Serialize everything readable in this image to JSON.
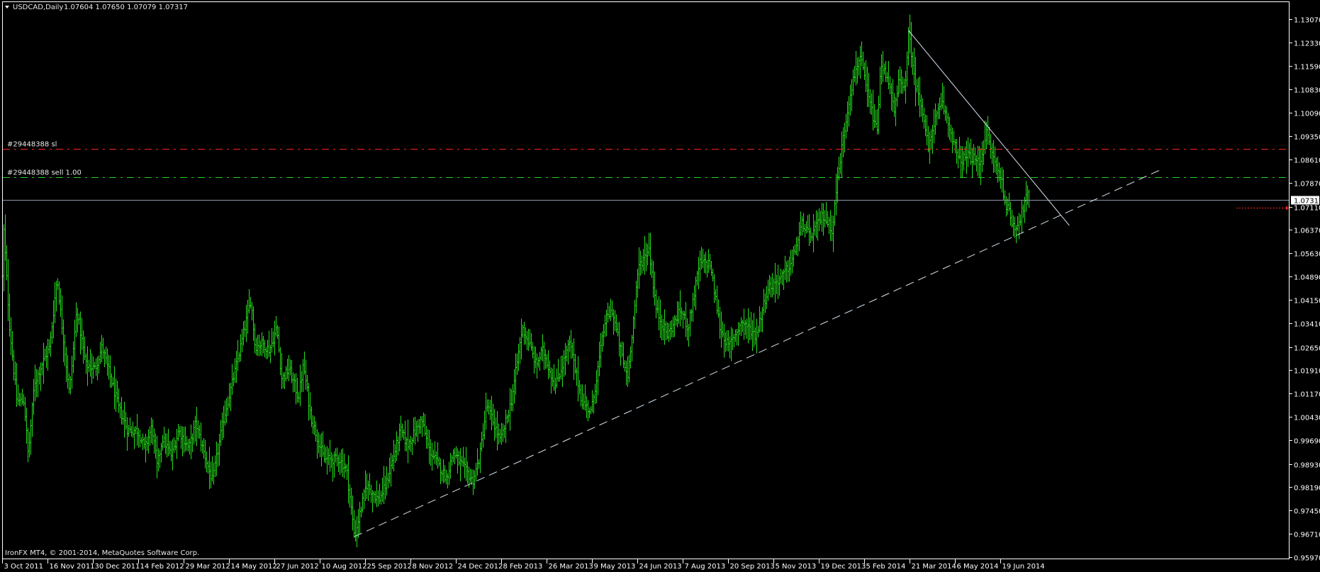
{
  "header": {
    "menu_icon": "triangle-down-icon",
    "symbol_timeframe": "USDCAD,Daily",
    "ohlc": "1.07604 1.07650 1.07079 1.07317"
  },
  "orders": {
    "sl_label": "#29448388 sl",
    "sell_label": "#29448388 sell 1.00"
  },
  "footer": {
    "copyright": "IronFX MT4, © 2001-2014, MetaQuotes Software Corp."
  },
  "current_price_label": "1.07317",
  "colors": {
    "background": "#000000",
    "bars": "#26e01c",
    "frame": "#ffffff",
    "price_line": "#8c96a8",
    "stop_loss_line": "#ff2020",
    "sell_line": "#22d022",
    "trendline": "#d6e4f0",
    "marker": "#ff2020"
  },
  "chart_data": {
    "type": "ohlc",
    "symbol": "USDCAD",
    "timeframe": "Daily",
    "last_bar": {
      "open": 1.07604,
      "high": 1.0765,
      "low": 1.07079,
      "close": 1.07317
    },
    "ylim": [
      0.9597,
      1.1307
    ],
    "grid": false,
    "y_ticks": [
      "1.13070",
      "1.12330",
      "1.11590",
      "1.10830",
      "1.10090",
      "1.09350",
      "1.08610",
      "1.07870",
      "1.07110",
      "1.06370",
      "1.05630",
      "1.04890",
      "1.04150",
      "1.03410",
      "1.02650",
      "1.01910",
      "1.01170",
      "1.00430",
      "0.99690",
      "0.98930",
      "0.98190",
      "0.97450",
      "0.96710",
      "0.95970"
    ],
    "x_ticks": [
      "3 Oct 2011",
      "16 Nov 2011",
      "30 Dec 2011",
      "14 Feb 2012",
      "29 Mar 2012",
      "14 May 2012",
      "27 Jun 2012",
      "10 Aug 2012",
      "25 Sep 2012",
      "8 Nov 2012",
      "24 Dec 2012",
      "8 Feb 2013",
      "26 Mar 2013",
      "9 May 2013",
      "24 Jun 2013",
      "7 Aug 2013",
      "20 Sep 2013",
      "5 Nov 2013",
      "19 Dec 2013",
      "5 Feb 2014",
      "21 Mar 2014",
      "6 May 2014",
      "19 Jun 2014"
    ],
    "price_path": [
      [
        "2011-10-03",
        1.0487
      ],
      [
        "2011-10-04",
        1.0654
      ],
      [
        "2011-10-10",
        1.0325
      ],
      [
        "2011-10-17",
        1.0093
      ],
      [
        "2011-10-24",
        1.0093
      ],
      [
        "2011-10-28",
        0.9919
      ],
      [
        "2011-11-03",
        1.0151
      ],
      [
        "2011-11-10",
        1.0208
      ],
      [
        "2011-11-18",
        1.0266
      ],
      [
        "2011-11-25",
        1.0487
      ],
      [
        "2011-11-30",
        1.0325
      ],
      [
        "2011-12-07",
        1.0115
      ],
      [
        "2011-12-14",
        1.0383
      ],
      [
        "2011-12-23",
        1.0208
      ],
      [
        "2012-01-01",
        1.0196
      ],
      [
        "2012-01-08",
        1.0266
      ],
      [
        "2012-01-18",
        1.0151
      ],
      [
        "2012-01-25",
        1.007
      ],
      [
        "2012-02-03",
        1.0
      ],
      [
        "2012-02-13",
        1.0
      ],
      [
        "2012-02-20",
        0.9942
      ],
      [
        "2012-02-27",
        1.0012
      ],
      [
        "2012-03-03",
        0.9883
      ],
      [
        "2012-03-08",
        0.9975
      ],
      [
        "2012-03-17",
        0.9919
      ],
      [
        "2012-03-24",
        1.0
      ],
      [
        "2012-04-03",
        0.9942
      ],
      [
        "2012-04-10",
        1.0023
      ],
      [
        "2012-04-17",
        0.9942
      ],
      [
        "2012-04-27",
        0.9838
      ],
      [
        "2012-05-08",
        1.0034
      ],
      [
        "2012-05-21",
        1.0208
      ],
      [
        "2012-05-25",
        1.0266
      ],
      [
        "2012-06-04",
        1.0417
      ],
      [
        "2012-06-08",
        1.0266
      ],
      [
        "2012-06-15",
        1.0277
      ],
      [
        "2012-06-22",
        1.0255
      ],
      [
        "2012-06-29",
        1.0325
      ],
      [
        "2012-07-04",
        1.0162
      ],
      [
        "2012-07-11",
        1.0196
      ],
      [
        "2012-07-20",
        1.0104
      ],
      [
        "2012-07-25",
        1.0208
      ],
      [
        "2012-08-01",
        1.0045
      ],
      [
        "2012-08-14",
        0.9908
      ],
      [
        "2012-08-30",
        0.9908
      ],
      [
        "2012-09-06",
        0.9872
      ],
      [
        "2012-09-14",
        0.9662
      ],
      [
        "2012-09-26",
        0.9827
      ],
      [
        "2012-10-08",
        0.9779
      ],
      [
        "2012-10-15",
        0.9827
      ],
      [
        "2012-10-29",
        1.0
      ],
      [
        "2012-11-05",
        0.9953
      ],
      [
        "2012-11-19",
        1.0034
      ],
      [
        "2012-11-26",
        0.9942
      ],
      [
        "2012-12-14",
        0.9849
      ],
      [
        "2012-12-21",
        0.993
      ],
      [
        "2013-01-10",
        0.9838
      ],
      [
        "2013-01-17",
        0.9919
      ],
      [
        "2013-01-24",
        1.0081
      ],
      [
        "2013-02-07",
        0.9964
      ],
      [
        "2013-02-18",
        1.0093
      ],
      [
        "2013-03-01",
        1.0325
      ],
      [
        "2013-03-08",
        1.0277
      ],
      [
        "2013-03-15",
        1.0208
      ],
      [
        "2013-03-22",
        1.0255
      ],
      [
        "2013-04-03",
        1.0138
      ],
      [
        "2013-04-17",
        1.0277
      ],
      [
        "2013-04-29",
        1.0093
      ],
      [
        "2013-05-08",
        1.0057
      ],
      [
        "2013-05-22",
        1.0347
      ],
      [
        "2013-05-29",
        1.0383
      ],
      [
        "2013-06-10",
        1.0208
      ],
      [
        "2013-06-14",
        1.0174
      ],
      [
        "2013-06-25",
        1.0521
      ],
      [
        "2013-07-05",
        1.0579
      ],
      [
        "2013-07-12",
        1.0383
      ],
      [
        "2013-07-23",
        1.0302
      ],
      [
        "2013-08-05",
        1.0383
      ],
      [
        "2013-08-12",
        1.0325
      ],
      [
        "2013-08-23",
        1.0532
      ],
      [
        "2013-09-02",
        1.0532
      ],
      [
        "2013-09-12",
        1.0325
      ],
      [
        "2013-09-20",
        1.0266
      ],
      [
        "2013-10-04",
        1.0347
      ],
      [
        "2013-10-18",
        1.0302
      ],
      [
        "2013-10-30",
        1.0451
      ],
      [
        "2013-11-13",
        1.0487
      ],
      [
        "2013-11-22",
        1.0532
      ],
      [
        "2013-12-03",
        1.066
      ],
      [
        "2013-12-10",
        1.0613
      ],
      [
        "2013-12-23",
        1.0683
      ],
      [
        "2014-01-02",
        1.0638
      ],
      [
        "2014-01-07",
        1.0789
      ],
      [
        "2014-01-14",
        1.094
      ],
      [
        "2014-01-21",
        1.1077
      ],
      [
        "2014-01-31",
        1.1194
      ],
      [
        "2014-02-07",
        1.1082
      ],
      [
        "2014-02-17",
        1.0947
      ],
      [
        "2014-02-21",
        1.1158
      ],
      [
        "2014-02-28",
        1.112
      ],
      [
        "2014-03-06",
        1.1007
      ],
      [
        "2014-03-10",
        1.1104
      ],
      [
        "2014-03-17",
        1.1104
      ],
      [
        "2014-03-20",
        1.1271
      ],
      [
        "2014-03-26",
        1.1104
      ],
      [
        "2014-04-02",
        1.1037
      ],
      [
        "2014-04-09",
        1.0888
      ],
      [
        "2014-04-14",
        1.0978
      ],
      [
        "2014-04-23",
        1.1037
      ],
      [
        "2014-05-06",
        1.0901
      ],
      [
        "2014-05-09",
        1.0856
      ],
      [
        "2014-05-19",
        1.0872
      ],
      [
        "2014-05-30",
        1.085
      ],
      [
        "2014-06-05",
        1.0947
      ],
      [
        "2014-06-13",
        1.0856
      ],
      [
        "2014-06-20",
        1.0798
      ],
      [
        "2014-06-23",
        1.073
      ],
      [
        "2014-07-02",
        1.0647
      ],
      [
        "2014-07-07",
        1.0663
      ],
      [
        "2014-07-15",
        1.0753
      ],
      [
        "2014-07-17",
        1.07317
      ]
    ],
    "horizontal_lines": {
      "stop_loss": 1.0894,
      "sell_entry": 1.0805,
      "current_price": 1.07317,
      "marker": 1.0708
    },
    "trendlines": [
      {
        "style": "solid",
        "from": [
          "2014-03-20",
          1.1271
        ],
        "to": [
          "2014-08-25",
          1.0651
        ]
      },
      {
        "style": "dashed",
        "from": [
          "2012-09-14",
          0.9662
        ],
        "to": [
          "2014-11-24",
          1.0832
        ]
      }
    ]
  }
}
